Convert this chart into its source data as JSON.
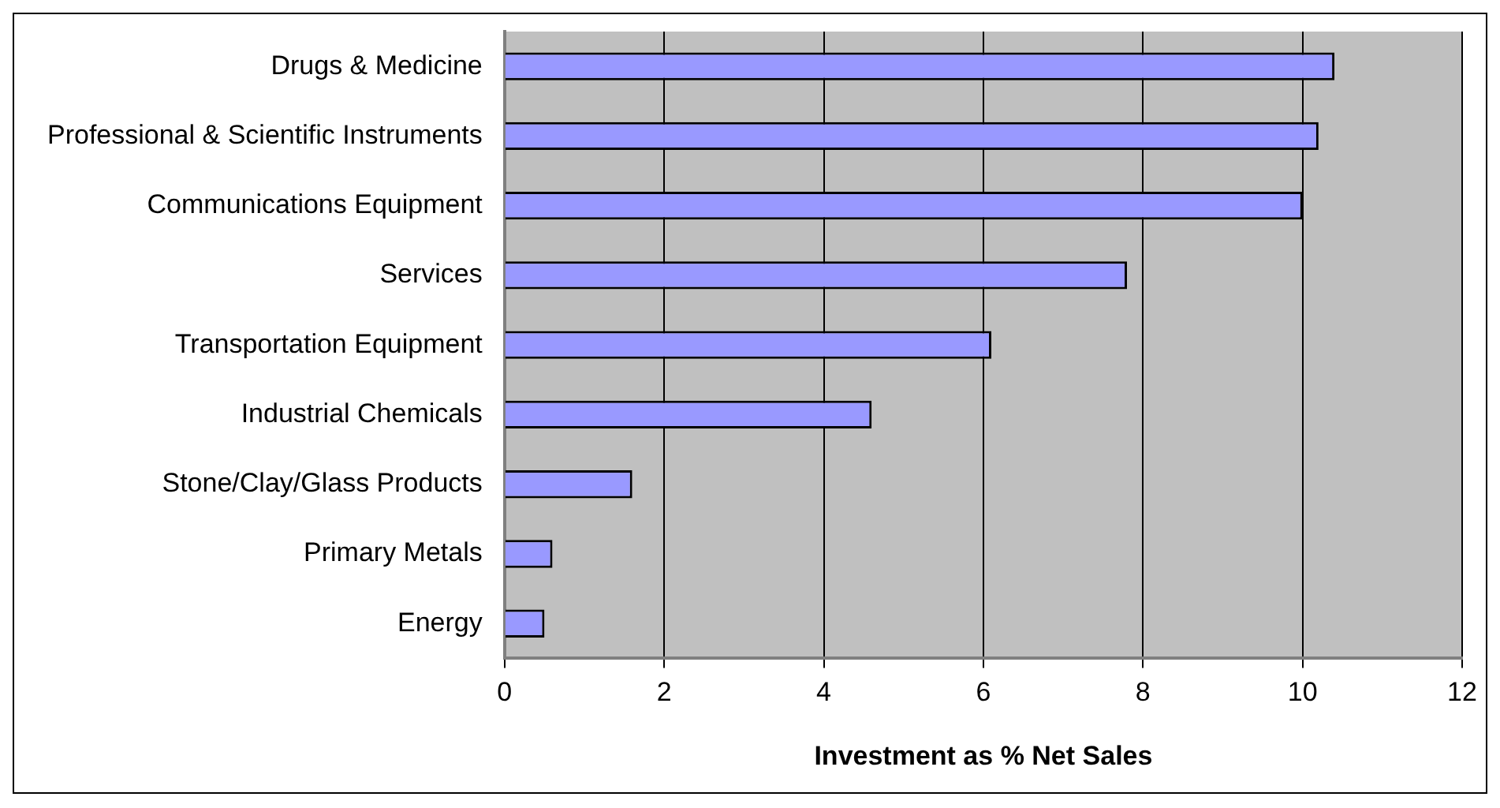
{
  "chart_data": {
    "type": "bar",
    "orientation": "horizontal",
    "xlabel": "Investment as % Net Sales",
    "categories": [
      "Drugs & Medicine",
      "Professional & Scientific Instruments",
      "Communications Equipment",
      "Services",
      "Transportation Equipment",
      "Industrial Chemicals",
      "Stone/Clay/Glass Products",
      "Primary Metals",
      "Energy"
    ],
    "values": [
      10.4,
      10.2,
      10.0,
      7.8,
      6.1,
      4.6,
      1.6,
      0.6,
      0.5
    ],
    "color": "#9999ff",
    "xlim": [
      0,
      12
    ],
    "xticks": [
      0,
      2,
      4,
      6,
      8,
      10,
      12
    ],
    "grid": "x",
    "legend": false
  }
}
